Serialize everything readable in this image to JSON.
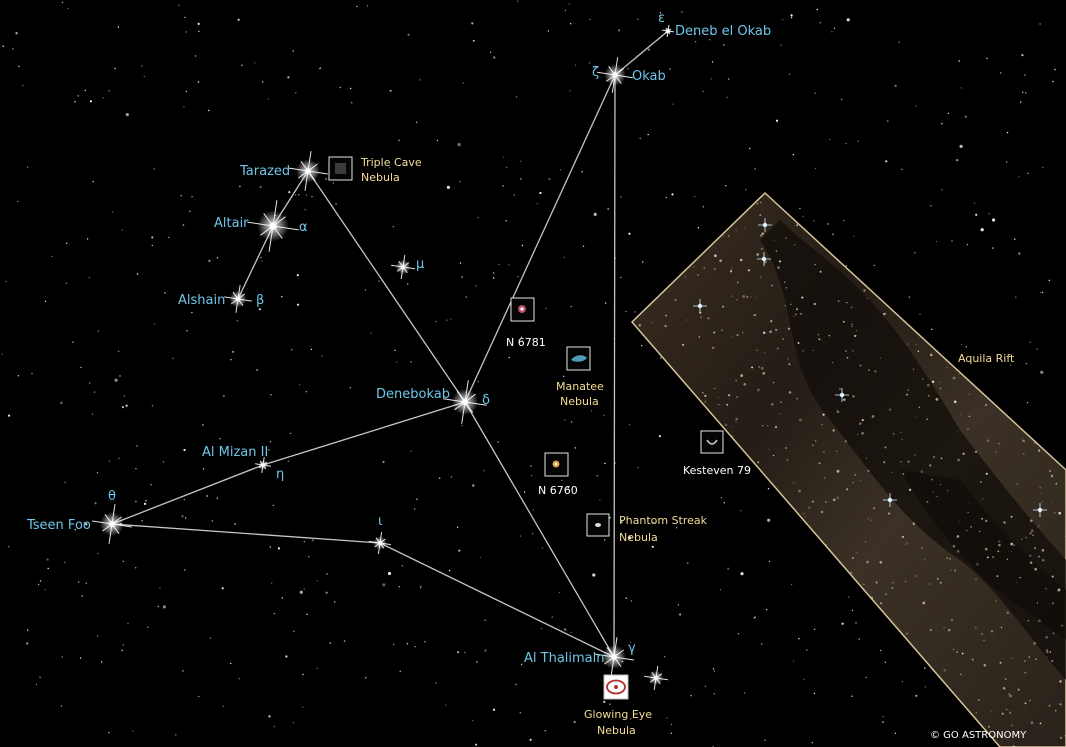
{
  "stars": {
    "okab": "Okab",
    "deneb_el_okab": "Deneb el Okab",
    "tarazed": "Tarazed",
    "altair": "Altair",
    "alshain": "Alshain",
    "denebokab": "Denebokab",
    "al_mizan": "Al Mizan II",
    "tseen_foo": "Tseen Foo",
    "al_thalimain": "Al Thalimain"
  },
  "greek": {
    "epsilon": "ε",
    "zeta": "ζ",
    "alpha": "α",
    "beta": "β",
    "mu": "μ",
    "delta": "δ",
    "eta": "η",
    "theta": "θ",
    "iota": "ι",
    "gamma": "γ"
  },
  "dso": {
    "triple_cave_1": "Triple Cave",
    "triple_cave_2": "Nebula",
    "n6781": "N 6781",
    "manatee_1": "Manatee",
    "manatee_2": "Nebula",
    "n6760": "N 6760",
    "kesteven": "Kesteven 79",
    "phantom_1": "Phantom Streak",
    "phantom_2": "Nebula",
    "glowing_1": "Glowing Eye",
    "glowing_2": "Nebula"
  },
  "rift_label": "Aquila Rift",
  "credit": "© GO ASTRONOMY"
}
